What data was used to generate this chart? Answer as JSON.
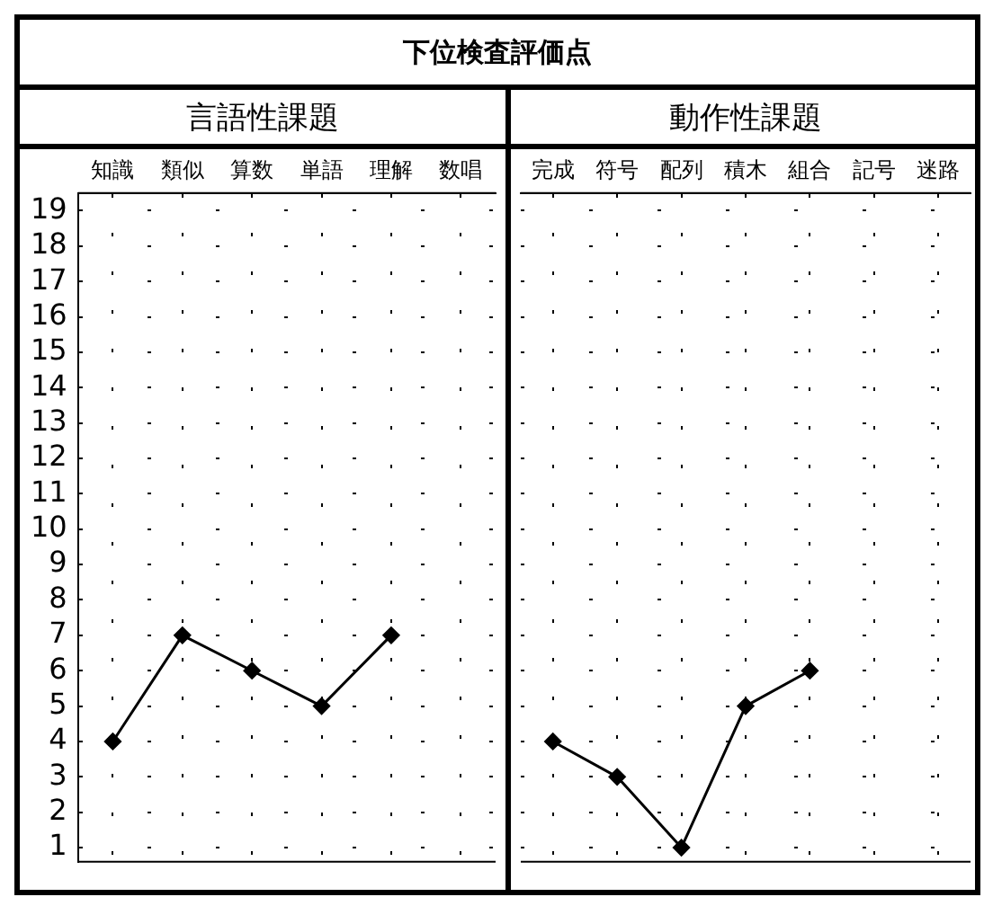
{
  "chart_data": [
    {
      "type": "line",
      "title": "言語性課題",
      "annotations": [
        "下位検査評価点"
      ],
      "categories": [
        "知識",
        "類似",
        "算数",
        "単語",
        "理解",
        "数唱"
      ],
      "series": [
        {
          "color": "#000000",
          "values": [
            4,
            7,
            6,
            5,
            7,
            null
          ]
        }
      ],
      "ylim": [
        0.6,
        19.5
      ],
      "yticks": [
        1,
        2,
        3,
        4,
        5,
        6,
        7,
        8,
        9,
        10,
        11,
        12,
        13,
        14,
        15,
        16,
        17,
        18,
        19
      ],
      "grid": true,
      "marker": "diamond",
      "line_style": "solid"
    },
    {
      "type": "line",
      "title": "動作性課題",
      "categories": [
        "完成",
        "符号",
        "配列",
        "積木",
        "組合",
        "記号",
        "迷路"
      ],
      "series": [
        {
          "color": "#000000",
          "values": [
            4,
            3,
            1,
            5,
            6,
            null,
            null
          ]
        }
      ],
      "ylim": [
        0.6,
        19.5
      ],
      "yticks": [
        1,
        2,
        3,
        4,
        5,
        6,
        7,
        8,
        9,
        10,
        11,
        12,
        13,
        14,
        15,
        16,
        17,
        18,
        19
      ],
      "grid": true,
      "marker": "diamond",
      "line_style": "solid",
      "tick_labels": "x"
    }
  ]
}
